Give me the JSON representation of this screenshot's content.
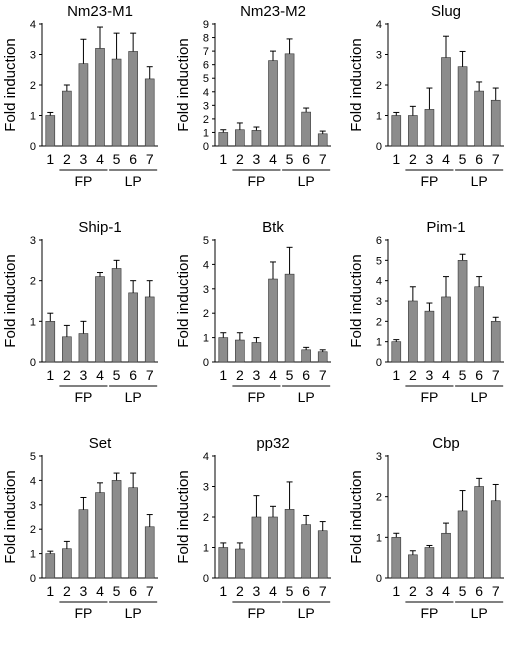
{
  "chart_data": [
    {
      "type": "bar",
      "title": "Nm23-M1",
      "ylabel": "Fold induction",
      "categories": [
        "1",
        "2",
        "3",
        "4",
        "5",
        "6",
        "7"
      ],
      "values": [
        1.0,
        1.8,
        2.7,
        3.2,
        2.85,
        3.1,
        2.2
      ],
      "errors": [
        0.1,
        0.2,
        0.8,
        0.7,
        0.85,
        0.6,
        0.4
      ],
      "ylim": [
        0,
        4
      ],
      "yticks": [
        0,
        1,
        2,
        3,
        4
      ],
      "groups": [
        {
          "label": "FP",
          "start": 1,
          "end": 3
        },
        {
          "label": "LP",
          "start": 4,
          "end": 6
        }
      ]
    },
    {
      "type": "bar",
      "title": "Nm23-M2",
      "ylabel": "Fold induction",
      "categories": [
        "1",
        "2",
        "3",
        "4",
        "5",
        "6",
        "7"
      ],
      "values": [
        1.0,
        1.2,
        1.15,
        6.3,
        6.8,
        2.5,
        0.9
      ],
      "errors": [
        0.2,
        0.5,
        0.25,
        0.7,
        1.1,
        0.3,
        0.2
      ],
      "ylim": [
        0,
        9
      ],
      "yticks": [
        0,
        1,
        2,
        3,
        4,
        5,
        6,
        7,
        8,
        9
      ],
      "groups": [
        {
          "label": "FP",
          "start": 1,
          "end": 3
        },
        {
          "label": "LP",
          "start": 4,
          "end": 6
        }
      ]
    },
    {
      "type": "bar",
      "title": "Slug",
      "ylabel": "Fold induction",
      "categories": [
        "1",
        "2",
        "3",
        "4",
        "5",
        "6",
        "7"
      ],
      "values": [
        1.0,
        1.0,
        1.2,
        2.9,
        2.6,
        1.8,
        1.5
      ],
      "errors": [
        0.1,
        0.3,
        0.7,
        0.7,
        0.5,
        0.3,
        0.4
      ],
      "ylim": [
        0,
        4
      ],
      "yticks": [
        0,
        1,
        2,
        3,
        4
      ],
      "groups": [
        {
          "label": "FP",
          "start": 1,
          "end": 3
        },
        {
          "label": "LP",
          "start": 4,
          "end": 6
        }
      ]
    },
    {
      "type": "bar",
      "title": "Ship-1",
      "ylabel": "Fold induction",
      "categories": [
        "1",
        "2",
        "3",
        "4",
        "5",
        "6",
        "7"
      ],
      "values": [
        1.0,
        0.62,
        0.7,
        2.1,
        2.3,
        1.7,
        1.6
      ],
      "errors": [
        0.2,
        0.28,
        0.3,
        0.1,
        0.2,
        0.3,
        0.4
      ],
      "ylim": [
        0,
        3
      ],
      "yticks": [
        0,
        1,
        2,
        3
      ],
      "groups": [
        {
          "label": "FP",
          "start": 1,
          "end": 3
        },
        {
          "label": "LP",
          "start": 4,
          "end": 6
        }
      ]
    },
    {
      "type": "bar",
      "title": "Btk",
      "ylabel": "Fold induction",
      "categories": [
        "1",
        "2",
        "3",
        "4",
        "5",
        "6",
        "7"
      ],
      "values": [
        1.0,
        0.9,
        0.8,
        3.4,
        3.6,
        0.5,
        0.42
      ],
      "errors": [
        0.2,
        0.3,
        0.2,
        0.7,
        1.1,
        0.1,
        0.08
      ],
      "ylim": [
        0,
        5
      ],
      "yticks": [
        0,
        1,
        2,
        3,
        4,
        5
      ],
      "groups": [
        {
          "label": "FP",
          "start": 1,
          "end": 3
        },
        {
          "label": "LP",
          "start": 4,
          "end": 6
        }
      ]
    },
    {
      "type": "bar",
      "title": "Pim-1",
      "ylabel": "Fold induction",
      "categories": [
        "1",
        "2",
        "3",
        "4",
        "5",
        "6",
        "7"
      ],
      "values": [
        1.0,
        3.0,
        2.5,
        3.2,
        5.0,
        3.7,
        2.0
      ],
      "errors": [
        0.1,
        0.7,
        0.4,
        1.0,
        0.3,
        0.5,
        0.2
      ],
      "ylim": [
        0,
        6
      ],
      "yticks": [
        0,
        1,
        2,
        3,
        4,
        5,
        6
      ],
      "groups": [
        {
          "label": "FP",
          "start": 1,
          "end": 3
        },
        {
          "label": "LP",
          "start": 4,
          "end": 6
        }
      ]
    },
    {
      "type": "bar",
      "title": "Set",
      "ylabel": "Fold induction",
      "categories": [
        "1",
        "2",
        "3",
        "4",
        "5",
        "6",
        "7"
      ],
      "values": [
        1.0,
        1.2,
        2.8,
        3.5,
        4.0,
        3.7,
        2.1
      ],
      "errors": [
        0.1,
        0.3,
        0.5,
        0.4,
        0.3,
        0.6,
        0.5
      ],
      "ylim": [
        0,
        5
      ],
      "yticks": [
        0,
        1,
        2,
        3,
        4,
        5
      ],
      "groups": [
        {
          "label": "FP",
          "start": 1,
          "end": 3
        },
        {
          "label": "LP",
          "start": 4,
          "end": 6
        }
      ]
    },
    {
      "type": "bar",
      "title": "pp32",
      "ylabel": "Fold induction",
      "categories": [
        "1",
        "2",
        "3",
        "4",
        "5",
        "6",
        "7"
      ],
      "values": [
        1.0,
        0.95,
        2.0,
        2.0,
        2.25,
        1.75,
        1.55
      ],
      "errors": [
        0.15,
        0.2,
        0.7,
        0.35,
        0.9,
        0.3,
        0.3
      ],
      "ylim": [
        0,
        4
      ],
      "yticks": [
        0,
        1,
        2,
        3,
        4
      ],
      "groups": [
        {
          "label": "FP",
          "start": 1,
          "end": 3
        },
        {
          "label": "LP",
          "start": 4,
          "end": 6
        }
      ]
    },
    {
      "type": "bar",
      "title": "Cbp",
      "ylabel": "Fold induction",
      "categories": [
        "1",
        "2",
        "3",
        "4",
        "5",
        "6",
        "7"
      ],
      "values": [
        1.0,
        0.57,
        0.75,
        1.1,
        1.65,
        2.25,
        1.9
      ],
      "errors": [
        0.1,
        0.1,
        0.05,
        0.25,
        0.5,
        0.2,
        0.4
      ],
      "ylim": [
        0,
        3
      ],
      "yticks": [
        0,
        1,
        2,
        3
      ],
      "groups": [
        {
          "label": "FP",
          "start": 1,
          "end": 3
        },
        {
          "label": "LP",
          "start": 4,
          "end": 6
        }
      ]
    }
  ],
  "colors": {
    "bar": "#8c8c8c",
    "axis": "#000000"
  }
}
